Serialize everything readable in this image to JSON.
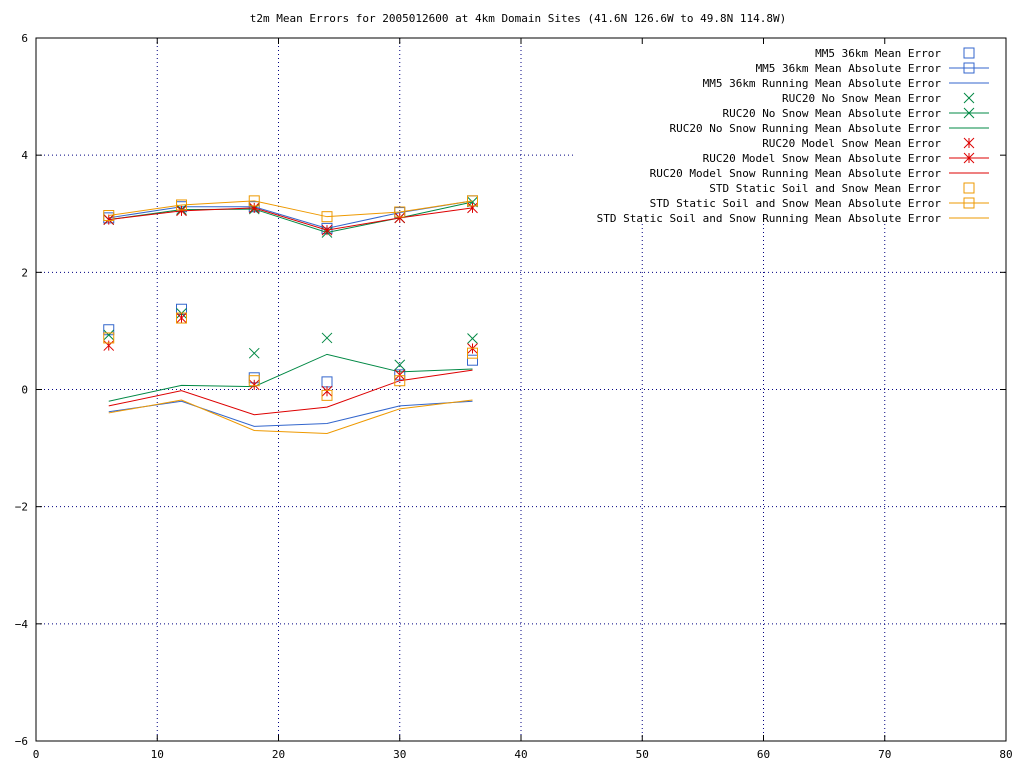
{
  "chart_data": {
    "type": "line",
    "title": "t2m Mean Errors for 2005012600 at 4km Domain Sites (41.6N 126.6W to 49.8N 114.8W)",
    "xlabel": "",
    "ylabel": "",
    "xlim": [
      0,
      80
    ],
    "ylim": [
      -6,
      6
    ],
    "xticks": [
      0,
      10,
      20,
      30,
      40,
      50,
      60,
      70,
      80
    ],
    "yticks": [
      -6,
      -4,
      -2,
      0,
      2,
      4,
      6
    ],
    "grid": true,
    "legend_position": "top-right",
    "x": [
      6,
      12,
      18,
      24,
      30,
      36
    ],
    "series": [
      {
        "name": "MM5 36km Mean Error",
        "style": "points",
        "marker": "square",
        "color": "#3366cc",
        "values": [
          1.02,
          1.37,
          0.2,
          0.13,
          0.25,
          0.5
        ]
      },
      {
        "name": "MM5 36km Mean Absolute Error",
        "style": "linespoints",
        "marker": "square",
        "color": "#3366cc",
        "values": [
          2.93,
          3.12,
          3.12,
          2.75,
          3.02,
          3.22
        ]
      },
      {
        "name": "MM5 36km Running Mean Absolute Error",
        "style": "line",
        "marker": "none",
        "color": "#3366cc",
        "values": [
          -0.38,
          -0.2,
          -0.63,
          -0.58,
          -0.28,
          -0.2
        ]
      },
      {
        "name": "RUC20 No Snow Mean Error",
        "style": "points",
        "marker": "x",
        "color": "#008844",
        "values": [
          0.93,
          1.3,
          0.62,
          0.88,
          0.42,
          0.87
        ]
      },
      {
        "name": "RUC20 No Snow Mean Absolute Error",
        "style": "linespoints",
        "marker": "x",
        "color": "#008844",
        "values": [
          2.9,
          3.07,
          3.08,
          2.68,
          2.93,
          3.2
        ]
      },
      {
        "name": "RUC20 No Snow Running Mean Absolute Error",
        "style": "line",
        "marker": "none",
        "color": "#008844",
        "values": [
          -0.2,
          0.07,
          0.05,
          0.6,
          0.3,
          0.35
        ]
      },
      {
        "name": "RUC20 Model Snow Mean Error",
        "style": "points",
        "marker": "star",
        "color": "#dd0000",
        "values": [
          0.75,
          1.22,
          0.08,
          -0.03,
          0.25,
          0.7
        ]
      },
      {
        "name": "RUC20 Model Snow Mean Absolute Error",
        "style": "linespoints",
        "marker": "star",
        "color": "#dd0000",
        "values": [
          2.9,
          3.05,
          3.1,
          2.72,
          2.93,
          3.1
        ]
      },
      {
        "name": "RUC20 Model Snow Running Mean Absolute Error",
        "style": "line",
        "marker": "none",
        "color": "#dd0000",
        "values": [
          -0.28,
          -0.02,
          -0.43,
          -0.3,
          0.15,
          0.33
        ]
      },
      {
        "name": "STD Static Soil and Snow Mean Error",
        "style": "points",
        "marker": "square",
        "color": "#ee9900",
        "values": [
          0.88,
          1.22,
          0.15,
          -0.1,
          0.15,
          0.62
        ]
      },
      {
        "name": "STD Static Soil and Snow Mean Absolute Error",
        "style": "linespoints",
        "marker": "square",
        "color": "#ee9900",
        "values": [
          2.97,
          3.15,
          3.22,
          2.95,
          3.03,
          3.22
        ]
      },
      {
        "name": "STD Static Soil and Snow Running Mean Absolute Error",
        "style": "line",
        "marker": "none",
        "color": "#ee9900",
        "values": [
          -0.4,
          -0.18,
          -0.7,
          -0.75,
          -0.33,
          -0.18
        ]
      }
    ]
  }
}
